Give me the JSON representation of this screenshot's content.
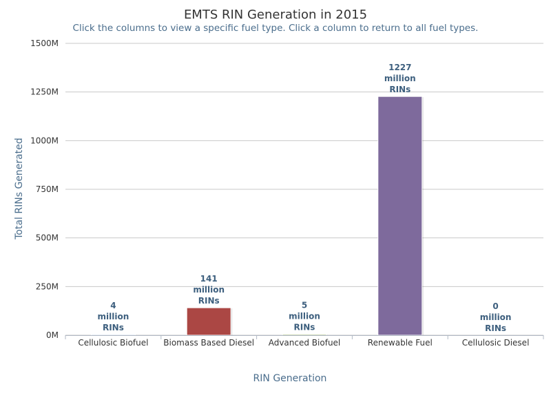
{
  "chart_data": {
    "type": "bar",
    "title": "EMTS RIN Generation in 2015",
    "subtitle": "Click the columns to view a specific fuel type. Click a column to return to all fuel types.",
    "xlabel": "RIN Generation",
    "ylabel": "Total RINs Generated",
    "ylim": [
      0,
      1500
    ],
    "yticks": [
      "0M",
      "250M",
      "500M",
      "750M",
      "1000M",
      "1250M",
      "1500M"
    ],
    "ytick_values": [
      0,
      250,
      500,
      750,
      1000,
      1250,
      1500
    ],
    "categories": [
      "Cellulosic Biofuel",
      "Biomass Based Diesel",
      "Advanced Biofuel",
      "Renewable Fuel",
      "Cellulosic Diesel"
    ],
    "values": [
      4,
      141,
      5,
      1227,
      0
    ],
    "data_labels": [
      [
        "4",
        "million",
        "RINs"
      ],
      [
        "141",
        "million",
        "RINs"
      ],
      [
        "5",
        "million",
        "RINs"
      ],
      [
        "1227",
        "million",
        "RINs"
      ],
      [
        "0",
        "million",
        "RINs"
      ]
    ],
    "colors": [
      "#4e7bb5",
      "#ab4744",
      "#8aa652",
      "#7e6a9c",
      "#4ba1b8"
    ],
    "grid": true,
    "legend": "none"
  }
}
